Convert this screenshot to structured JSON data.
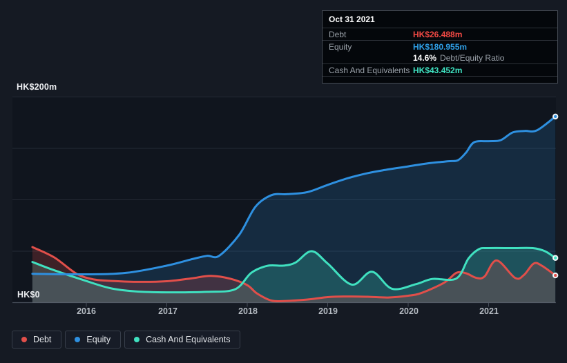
{
  "page": {
    "background": "#151a23"
  },
  "tooltip": {
    "date": "Oct 31 2021",
    "debt_label": "Debt",
    "debt_value": "HK$26.488m",
    "debt_color": "#f24944",
    "equity_label": "Equity",
    "equity_value": "HK$180.955m",
    "equity_color": "#2f9fe6",
    "ratio_value": "14.6%",
    "ratio_label": "Debt/Equity Ratio",
    "cash_label": "Cash And Equivalents",
    "cash_value": "HK$43.452m",
    "cash_color": "#3fe2c1"
  },
  "y_axis": {
    "top": "HK$200m",
    "bottom": "HK$0"
  },
  "x_axis": {
    "ticks": [
      "2016",
      "2017",
      "2018",
      "2019",
      "2020",
      "2021"
    ]
  },
  "legend": {
    "items": [
      {
        "label": "Debt",
        "color": "#e14f4a"
      },
      {
        "label": "Equity",
        "color": "#2e90e0"
      },
      {
        "label": "Cash And Equivalents",
        "color": "#40e1c0"
      }
    ]
  },
  "chart_data": {
    "type": "area",
    "x_unit": "year",
    "x_range": [
      2015.33,
      2021.83
    ],
    "ylim": [
      0,
      200
    ],
    "grid_values": [
      50,
      100,
      150,
      200
    ],
    "x_ticks": [
      2016,
      2017,
      2018,
      2019,
      2020,
      2021
    ],
    "currency": "HK$m",
    "hover_point": {
      "date": "Oct 31 2021",
      "debt": 26.488,
      "equity": 180.955,
      "cash": 43.452,
      "debt_equity_ratio_pct": 14.6
    },
    "series": [
      {
        "name": "Debt",
        "color": "#e14f4a",
        "fill_opacity": 0.22,
        "points": [
          [
            2015.33,
            54
          ],
          [
            2015.6,
            44
          ],
          [
            2015.88,
            28
          ],
          [
            2016.1,
            22.5
          ],
          [
            2016.35,
            21
          ],
          [
            2016.65,
            20.2
          ],
          [
            2017.0,
            20.8
          ],
          [
            2017.3,
            23.5
          ],
          [
            2017.55,
            26
          ],
          [
            2017.8,
            23
          ],
          [
            2018.0,
            17
          ],
          [
            2018.12,
            9
          ],
          [
            2018.3,
            2
          ],
          [
            2018.5,
            1.7
          ],
          [
            2018.78,
            3.3
          ],
          [
            2019.0,
            5.4
          ],
          [
            2019.2,
            6
          ],
          [
            2019.5,
            5.7
          ],
          [
            2019.75,
            5
          ],
          [
            2020.0,
            6.7
          ],
          [
            2020.17,
            9.5
          ],
          [
            2020.45,
            19.5
          ],
          [
            2020.6,
            29
          ],
          [
            2020.72,
            28.5
          ],
          [
            2020.85,
            24
          ],
          [
            2020.95,
            25.5
          ],
          [
            2021.1,
            41
          ],
          [
            2021.33,
            24
          ],
          [
            2021.44,
            27
          ],
          [
            2021.56,
            38
          ],
          [
            2021.66,
            36
          ],
          [
            2021.83,
            26.488
          ]
        ]
      },
      {
        "name": "Equity",
        "color": "#2e90e0",
        "fill_opacity": 0.18,
        "points": [
          [
            2015.33,
            28
          ],
          [
            2016.0,
            27.5
          ],
          [
            2016.5,
            29
          ],
          [
            2017.0,
            36
          ],
          [
            2017.3,
            42
          ],
          [
            2017.5,
            45.5
          ],
          [
            2017.65,
            45.5
          ],
          [
            2017.9,
            66
          ],
          [
            2018.1,
            93
          ],
          [
            2018.3,
            104.5
          ],
          [
            2018.5,
            105.5
          ],
          [
            2018.75,
            107.5
          ],
          [
            2019.0,
            114.5
          ],
          [
            2019.25,
            121
          ],
          [
            2019.5,
            126
          ],
          [
            2019.75,
            129.5
          ],
          [
            2020.0,
            132.5
          ],
          [
            2020.25,
            135.5
          ],
          [
            2020.5,
            137.5
          ],
          [
            2020.62,
            138.5
          ],
          [
            2020.72,
            146
          ],
          [
            2020.82,
            156
          ],
          [
            2021.0,
            157
          ],
          [
            2021.15,
            158
          ],
          [
            2021.3,
            165.5
          ],
          [
            2021.45,
            167
          ],
          [
            2021.6,
            167.5
          ],
          [
            2021.83,
            180.955
          ]
        ]
      },
      {
        "name": "Cash And Equivalents",
        "color": "#40e1c0",
        "fill_opacity": 0.22,
        "points": [
          [
            2015.33,
            39.5
          ],
          [
            2015.6,
            31.5
          ],
          [
            2016.0,
            21
          ],
          [
            2016.3,
            14
          ],
          [
            2016.6,
            11
          ],
          [
            2017.0,
            10
          ],
          [
            2017.5,
            10.5
          ],
          [
            2017.85,
            13
          ],
          [
            2018.05,
            29
          ],
          [
            2018.25,
            35.8
          ],
          [
            2018.45,
            36
          ],
          [
            2018.6,
            39
          ],
          [
            2018.8,
            50
          ],
          [
            2019.0,
            38
          ],
          [
            2019.3,
            17.5
          ],
          [
            2019.55,
            30
          ],
          [
            2019.8,
            13.5
          ],
          [
            2020.1,
            18
          ],
          [
            2020.3,
            23
          ],
          [
            2020.6,
            23.5
          ],
          [
            2020.75,
            43
          ],
          [
            2020.88,
            52
          ],
          [
            2021.0,
            53
          ],
          [
            2021.3,
            53
          ],
          [
            2021.55,
            53
          ],
          [
            2021.7,
            50
          ],
          [
            2021.83,
            43.452
          ]
        ]
      }
    ]
  }
}
